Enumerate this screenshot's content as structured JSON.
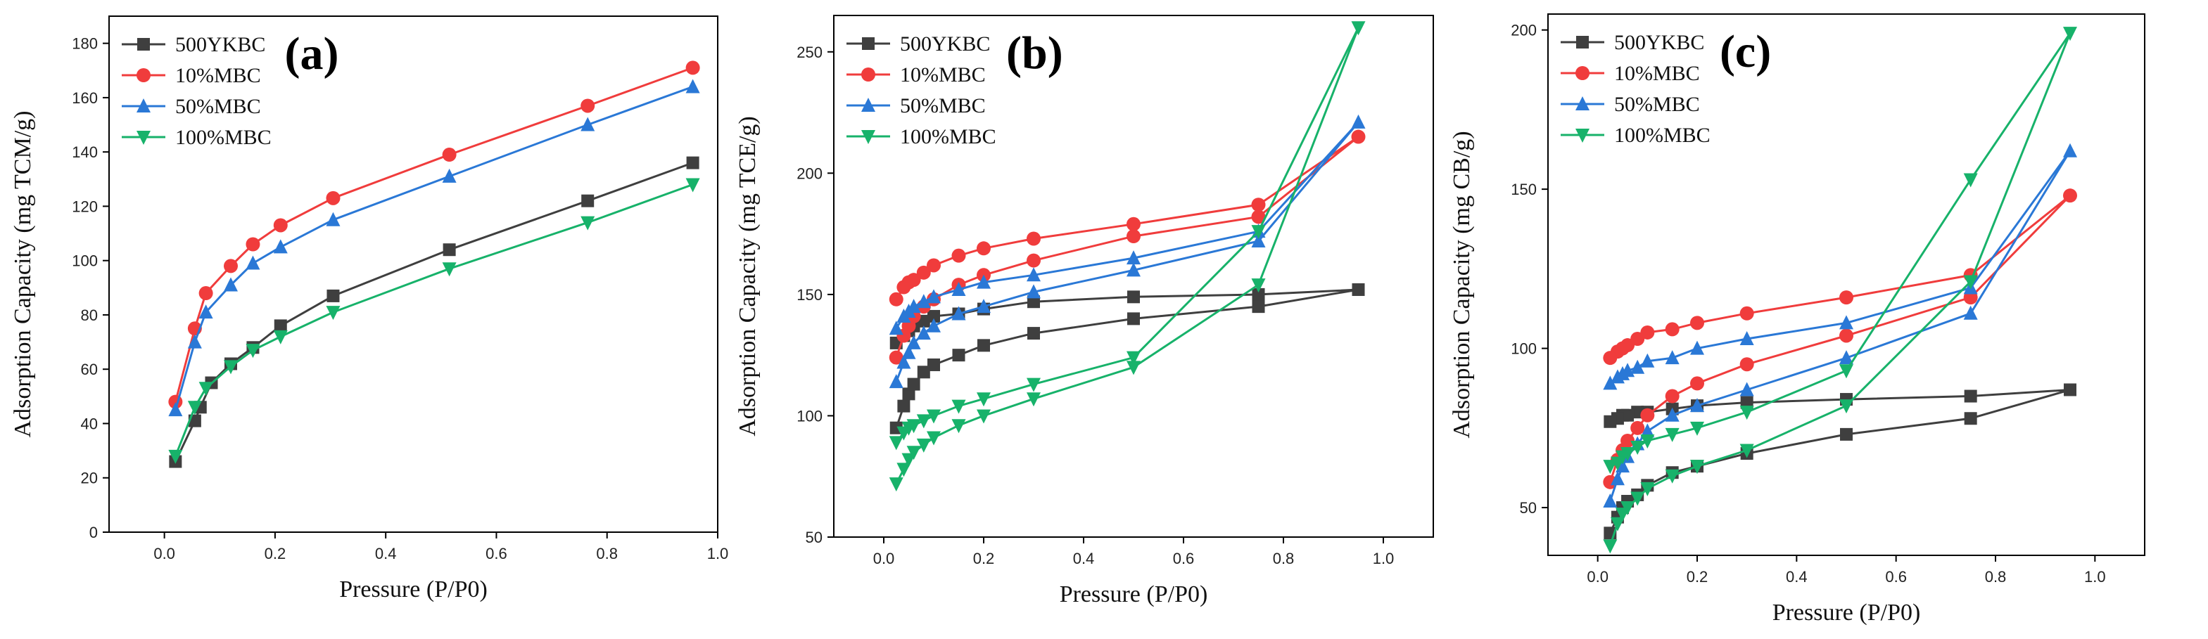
{
  "chart_data": [
    {
      "type": "line",
      "panel_label": "(a)",
      "xlabel": "Pressure (P/P0)",
      "ylabel": "Adsorption Capacity (mg TCM/g)",
      "xlim": [
        -0.1,
        1.0
      ],
      "ylim": [
        0,
        190
      ],
      "xticks": [
        "0.0",
        "0.2",
        "0.4",
        "0.6",
        "0.8",
        "1.0"
      ],
      "yticks": [
        "0",
        "20",
        "40",
        "60",
        "80",
        "100",
        "120",
        "140",
        "160",
        "180"
      ],
      "legend_position": "top-left",
      "series": [
        {
          "name": "500YKBC",
          "color": "#3f3f3f",
          "marker": "square",
          "x": [
            0.02,
            0.055,
            0.065,
            0.085,
            0.12,
            0.16,
            0.21,
            0.305,
            0.515,
            0.765,
            0.955
          ],
          "y": [
            26,
            41,
            46,
            55,
            62,
            68,
            76,
            87,
            104,
            122,
            136
          ]
        },
        {
          "name": "10%MBC",
          "color": "#f03c3c",
          "marker": "circle",
          "x": [
            0.02,
            0.055,
            0.075,
            0.12,
            0.16,
            0.21,
            0.305,
            0.515,
            0.765,
            0.955
          ],
          "y": [
            48,
            75,
            88,
            98,
            106,
            113,
            123,
            139,
            157,
            171
          ]
        },
        {
          "name": "50%MBC",
          "color": "#2a78d6",
          "marker": "triangle-up",
          "x": [
            0.02,
            0.055,
            0.075,
            0.12,
            0.16,
            0.21,
            0.305,
            0.515,
            0.765,
            0.955
          ],
          "y": [
            45,
            70,
            81,
            91,
            99,
            105,
            115,
            131,
            150,
            164
          ]
        },
        {
          "name": "100%MBC",
          "color": "#17b26a",
          "marker": "triangle-down",
          "x": [
            0.02,
            0.055,
            0.075,
            0.12,
            0.16,
            0.21,
            0.305,
            0.515,
            0.765,
            0.955
          ],
          "y": [
            28,
            46,
            53,
            61,
            67,
            72,
            81,
            97,
            114,
            128
          ]
        }
      ]
    },
    {
      "type": "line",
      "panel_label": "(b)",
      "xlabel": "Pressure (P/P0)",
      "ylabel": "Adsorption Capacity (mg TCE/g)",
      "xlim": [
        -0.1,
        1.1
      ],
      "ylim": [
        50,
        265
      ],
      "xticks": [
        "0.0",
        "0.2",
        "0.4",
        "0.6",
        "0.8",
        "1.0"
      ],
      "yticks": [
        "50",
        "100",
        "150",
        "200",
        "250"
      ],
      "legend_position": "top-left",
      "series": [
        {
          "name": "500YKBC",
          "color": "#3f3f3f",
          "marker": "square",
          "x": [
            0.025,
            0.04,
            0.05,
            0.06,
            0.08,
            0.1,
            0.15,
            0.2,
            0.3,
            0.5,
            0.75,
            0.95,
            0.75,
            0.5,
            0.3,
            0.2,
            0.15,
            0.1,
            0.08,
            0.06,
            0.05,
            0.04,
            0.025
          ],
          "y": [
            95,
            104,
            109,
            113,
            118,
            121,
            125,
            129,
            134,
            140,
            145,
            152,
            150,
            149,
            147,
            144,
            142,
            141,
            139,
            137,
            135,
            133,
            130
          ]
        },
        {
          "name": "10%MBC",
          "color": "#f03c3c",
          "marker": "circle",
          "x": [
            0.025,
            0.04,
            0.05,
            0.06,
            0.08,
            0.1,
            0.15,
            0.2,
            0.3,
            0.5,
            0.75,
            0.95,
            0.75,
            0.5,
            0.3,
            0.2,
            0.15,
            0.1,
            0.08,
            0.06,
            0.05,
            0.04,
            0.025
          ],
          "y": [
            124,
            133,
            137,
            141,
            145,
            148,
            154,
            158,
            164,
            174,
            182,
            215,
            187,
            179,
            173,
            169,
            166,
            162,
            159,
            156,
            155,
            153,
            148
          ]
        },
        {
          "name": "50%MBC",
          "color": "#2a78d6",
          "marker": "triangle-up",
          "x": [
            0.025,
            0.04,
            0.05,
            0.06,
            0.08,
            0.1,
            0.15,
            0.2,
            0.3,
            0.5,
            0.75,
            0.95,
            0.75,
            0.5,
            0.3,
            0.2,
            0.15,
            0.1,
            0.08,
            0.06,
            0.05,
            0.04,
            0.025
          ],
          "y": [
            114,
            122,
            126,
            130,
            134,
            137,
            142,
            145,
            151,
            160,
            172,
            221,
            176,
            165,
            158,
            155,
            152,
            149,
            147,
            145,
            143,
            141,
            136
          ]
        },
        {
          "name": "100%MBC",
          "color": "#17b26a",
          "marker": "triangle-down",
          "x": [
            0.025,
            0.04,
            0.05,
            0.06,
            0.08,
            0.1,
            0.15,
            0.2,
            0.3,
            0.5,
            0.75,
            0.95,
            0.75,
            0.5,
            0.3,
            0.2,
            0.15,
            0.1,
            0.08,
            0.06,
            0.05,
            0.04,
            0.025
          ],
          "y": [
            72,
            78,
            82,
            85,
            88,
            91,
            96,
            100,
            107,
            120,
            154,
            260,
            176,
            124,
            113,
            107,
            104,
            100,
            98,
            96,
            95,
            93,
            89
          ]
        }
      ]
    },
    {
      "type": "line",
      "panel_label": "(c)",
      "xlabel": "Pressure (P/P0)",
      "ylabel": "Adsorption Capacity (mg CB/g)",
      "xlim": [
        -0.1,
        1.1
      ],
      "ylim": [
        35,
        205
      ],
      "xticks": [
        "0.0",
        "0.2",
        "0.4",
        "0.6",
        "0.8",
        "1.0"
      ],
      "yticks": [
        "50",
        "100",
        "150",
        "200"
      ],
      "legend_position": "top-left",
      "series": [
        {
          "name": "500YKBC",
          "color": "#3f3f3f",
          "marker": "square",
          "x": [
            0.025,
            0.04,
            0.05,
            0.06,
            0.08,
            0.1,
            0.15,
            0.2,
            0.3,
            0.5,
            0.75,
            0.95,
            0.75,
            0.5,
            0.3,
            0.2,
            0.15,
            0.1,
            0.08,
            0.06,
            0.05,
            0.04,
            0.025
          ],
          "y": [
            42,
            47,
            50,
            52,
            54,
            57,
            61,
            63,
            67,
            73,
            78,
            87,
            85,
            84,
            83,
            82,
            81,
            80,
            80,
            79,
            79,
            78,
            77
          ]
        },
        {
          "name": "10%MBC",
          "color": "#f03c3c",
          "marker": "circle",
          "x": [
            0.025,
            0.04,
            0.05,
            0.06,
            0.08,
            0.1,
            0.15,
            0.2,
            0.3,
            0.5,
            0.75,
            0.95,
            0.75,
            0.5,
            0.3,
            0.2,
            0.15,
            0.1,
            0.08,
            0.06,
            0.05,
            0.04,
            0.025
          ],
          "y": [
            58,
            65,
            68,
            71,
            75,
            79,
            85,
            89,
            95,
            104,
            116,
            148,
            123,
            116,
            111,
            108,
            106,
            105,
            103,
            101,
            100,
            99,
            97
          ]
        },
        {
          "name": "50%MBC",
          "color": "#2a78d6",
          "marker": "triangle-up",
          "x": [
            0.025,
            0.04,
            0.05,
            0.06,
            0.08,
            0.1,
            0.15,
            0.2,
            0.3,
            0.5,
            0.75,
            0.95,
            0.75,
            0.5,
            0.3,
            0.2,
            0.15,
            0.1,
            0.08,
            0.06,
            0.05,
            0.04,
            0.025
          ],
          "y": [
            52,
            59,
            63,
            66,
            70,
            74,
            79,
            82,
            87,
            97,
            111,
            162,
            119,
            108,
            103,
            100,
            97,
            96,
            94,
            93,
            92,
            91,
            89
          ]
        },
        {
          "name": "100%MBC",
          "color": "#17b26a",
          "marker": "triangle-down",
          "x": [
            0.025,
            0.04,
            0.05,
            0.06,
            0.08,
            0.1,
            0.15,
            0.2,
            0.3,
            0.5,
            0.75,
            0.95,
            0.75,
            0.5,
            0.3,
            0.2,
            0.15,
            0.1,
            0.08,
            0.06,
            0.05,
            0.04,
            0.025
          ],
          "y": [
            38,
            45,
            48,
            50,
            53,
            56,
            60,
            63,
            68,
            82,
            121,
            199,
            153,
            93,
            80,
            75,
            73,
            71,
            69,
            67,
            66,
            64,
            63
          ]
        }
      ]
    }
  ]
}
